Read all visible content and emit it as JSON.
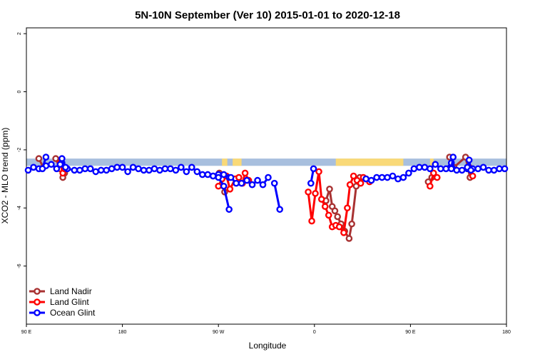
{
  "chart_data": {
    "type": "line",
    "title": "5N-10N September (Ver 10)   2015-01-01 to 2020-12-18",
    "xlabel": "Longitude",
    "ylabel": "XCO2 - MLO trend (ppm)",
    "xlim": [
      -90,
      180
    ],
    "ylim": [
      -8,
      2.2
    ],
    "x_ticks": [
      {
        "value": -90,
        "label": "90 E"
      },
      {
        "value": -36,
        "label": "180"
      },
      {
        "value": 18,
        "label": "90 W"
      },
      {
        "value": 72,
        "label": "0"
      },
      {
        "value": 126,
        "label": "90 E"
      },
      {
        "value": 180,
        "label": "180"
      }
    ],
    "y_ticks": [
      {
        "value": 2,
        "label": "2"
      },
      {
        "value": 0,
        "label": "0"
      },
      {
        "value": -2,
        "label": "-2"
      },
      {
        "value": -4,
        "label": "-4"
      },
      {
        "value": -6,
        "label": "-6"
      }
    ],
    "land_mask_band": {
      "y_range": [
        -2.55,
        -2.3
      ],
      "ocean_color": "#a8bfde",
      "land_color": "#f9d978",
      "land_segments": [
        [
          20,
          23
        ],
        [
          26,
          31
        ],
        [
          84,
          122
        ],
        [
          137,
          139
        ]
      ]
    },
    "legend": {
      "position": "bottom-left",
      "entries": [
        {
          "label": "Land Nadir",
          "color": "#a83232"
        },
        {
          "label": "Land Glint",
          "color": "#ff0000"
        },
        {
          "label": "Ocean Glint",
          "color": "#0000ff"
        }
      ]
    },
    "series": [
      {
        "name": "Land Nadir",
        "color": "#a83232",
        "segments": [
          {
            "x": [
              -83,
              -80.5
            ],
            "y": [
              -2.3,
              -2.6
            ]
          },
          {
            "x": [
              -73.5,
              -71,
              -69.5,
              -68.5
            ],
            "y": [
              -2.3,
              -2.65,
              -2.95,
              -2.8
            ]
          },
          {
            "x": [
              18.5,
              21.5
            ],
            "y": [
              -2.8,
              -3.45
            ]
          },
          {
            "x": [
              78.5,
              80.5,
              82,
              83.5,
              85,
              87,
              89,
              91.5,
              93,
              95.5,
              97.5
            ],
            "y": [
              -3.75,
              -3.35,
              -3.95,
              -4.1,
              -4.3,
              -4.55,
              -4.8,
              -5.05,
              -4.55,
              -3.25,
              -2.95
            ]
          },
          {
            "x": [
              136,
              138
            ],
            "y": [
              -3.1,
              -2.95
            ]
          },
          {
            "x": [
              148,
              150.5,
              157,
              159.5
            ],
            "y": [
              -2.25,
              -2.6,
              -2.25,
              -2.95
            ]
          }
        ]
      },
      {
        "name": "Land Glint",
        "color": "#ff0000",
        "segments": [
          {
            "x": [
              -71,
              -69.5,
              -68.5
            ],
            "y": [
              -2.45,
              -2.8,
              -2.65
            ]
          },
          {
            "x": [
              18,
              20,
              22.5,
              24.5,
              27.5,
              29.5,
              31.5,
              33,
              35
            ],
            "y": [
              -3.25,
              -3.0,
              -2.9,
              -3.35,
              -3.0,
              -2.95,
              -3.15,
              -2.8,
              -3.05
            ]
          },
          {
            "x": [
              68.5,
              70.5,
              72.5,
              74.5,
              76,
              78,
              80,
              82,
              84,
              86,
              88.5,
              90.5,
              92,
              94,
              96,
              98,
              99.5,
              101,
              103
            ],
            "y": [
              -3.45,
              -4.45,
              -3.5,
              -2.75,
              -3.7,
              -3.95,
              -4.25,
              -4.65,
              -4.6,
              -4.65,
              -4.85,
              -4.0,
              -3.2,
              -2.9,
              -3.05,
              -3.15,
              -2.95,
              -3.0,
              -3.1
            ]
          },
          {
            "x": [
              137,
              139,
              141
            ],
            "y": [
              -3.25,
              -2.8,
              -2.95
            ]
          },
          {
            "x": [
              159,
              161
            ],
            "y": [
              -2.6,
              -2.9
            ]
          }
        ]
      },
      {
        "name": "Ocean Glint",
        "color": "#0000ff",
        "segments": [
          {
            "x": [
              -89,
              -86,
              -83,
              -79,
              -76,
              -73,
              -70,
              -67,
              -63,
              -60,
              -57,
              -54,
              -51,
              -48,
              -45,
              -42,
              -39,
              -36,
              -33,
              -30,
              -27,
              -24,
              -21,
              -18,
              -15,
              -12,
              -9,
              -6,
              -3,
              0,
              3,
              6,
              9,
              12,
              15,
              18,
              21,
              24
            ],
            "y": [
              -2.7,
              -2.6,
              -2.65,
              -2.55,
              -2.5,
              -2.65,
              -2.45,
              -2.65,
              -2.7,
              -2.7,
              -2.65,
              -2.65,
              -2.75,
              -2.7,
              -2.7,
              -2.65,
              -2.6,
              -2.6,
              -2.75,
              -2.6,
              -2.65,
              -2.7,
              -2.7,
              -2.65,
              -2.7,
              -2.65,
              -2.65,
              -2.7,
              -2.6,
              -2.75,
              -2.6,
              -2.75,
              -2.85,
              -2.85,
              -2.9,
              -2.85,
              -2.85,
              -2.95
            ]
          },
          {
            "x": [
              -81,
              -79
            ],
            "y": [
              -2.65,
              -2.25
            ]
          },
          {
            "x": [
              -71,
              -70,
              -68
            ],
            "y": [
              -2.5,
              -2.3,
              -2.6
            ]
          },
          {
            "x": [
              15,
              18,
              21,
              24
            ],
            "y": [
              -2.9,
              -2.95,
              -3.25,
              -4.05
            ]
          },
          {
            "x": [
              25,
              28,
              31,
              34,
              37,
              40,
              43,
              46
            ],
            "y": [
              -2.95,
              -3.15,
              -3.15,
              -3.05,
              -3.2,
              -3.05,
              -3.2,
              -2.95
            ]
          },
          {
            "x": [
              49.5,
              52.5
            ],
            "y": [
              -3.15,
              -4.05
            ]
          },
          {
            "x": [
              70,
              71.5
            ],
            "y": [
              -3.15,
              -2.65
            ]
          },
          {
            "x": [
              101,
              104,
              107,
              110,
              113,
              116,
              119,
              122,
              125,
              128,
              131,
              134,
              137,
              140,
              143,
              146,
              149,
              152,
              155,
              158,
              161,
              164,
              167,
              170,
              173,
              176,
              179
            ],
            "y": [
              -3.0,
              -3.05,
              -2.95,
              -2.95,
              -2.95,
              -2.9,
              -3.0,
              -2.95,
              -2.8,
              -2.65,
              -2.6,
              -2.6,
              -2.65,
              -2.5,
              -2.65,
              -2.65,
              -2.45,
              -2.7,
              -2.7,
              -2.65,
              -2.65,
              -2.65,
              -2.6,
              -2.7,
              -2.7,
              -2.65,
              -2.65
            ]
          },
          {
            "x": [
              149,
              150
            ],
            "y": [
              -2.65,
              -2.25
            ]
          },
          {
            "x": [
              158,
              159,
              160
            ],
            "y": [
              -2.6,
              -2.35,
              -2.7
            ]
          }
        ]
      }
    ]
  }
}
